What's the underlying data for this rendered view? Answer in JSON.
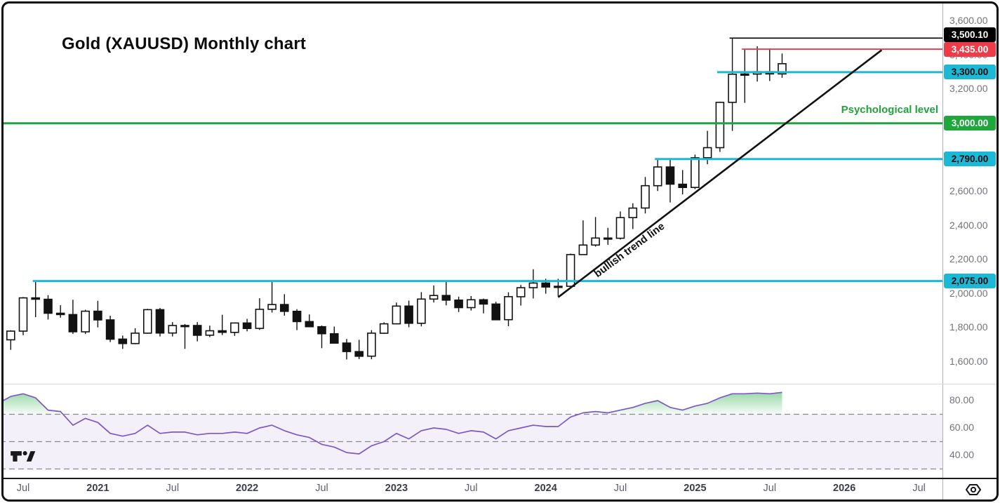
{
  "chart_data": {
    "type": "candlestick",
    "title": "Gold (XAUUSD) Monthly chart",
    "symbol": "XAUUSD",
    "timeframe": "Monthly",
    "price_axis_ticks": [
      {
        "label": "3,600.00",
        "value": 3600
      },
      {
        "label": "3,400.00",
        "value": 3400
      },
      {
        "label": "3,200.00",
        "value": 3200
      },
      {
        "label": "2,800.00",
        "value": 2800
      },
      {
        "label": "2,600.00",
        "value": 2600
      },
      {
        "label": "2,400.00",
        "value": 2400
      },
      {
        "label": "2,200.00",
        "value": 2200
      },
      {
        "label": "2,000.00",
        "value": 2000
      },
      {
        "label": "1,800.00",
        "value": 1800
      },
      {
        "label": "1,600.00",
        "value": 1600
      }
    ],
    "price_badges": [
      {
        "label": "3,500.10",
        "value": 3500.1,
        "bg": "#000000",
        "fg": "#ffffff"
      },
      {
        "label": "3,435.00",
        "value": 3435,
        "bg": "#ef3b47",
        "fg": "#ffffff"
      },
      {
        "label": "3,300.00",
        "value": 3300,
        "bg": "#1cb9d6",
        "fg": "#0c0c0c"
      },
      {
        "label": "3,000.00",
        "value": 3000,
        "bg": "#1ea73c",
        "fg": "#ffffff"
      },
      {
        "label": "2,790.00",
        "value": 2790,
        "bg": "#1cb9d6",
        "fg": "#0c0c0c"
      },
      {
        "label": "2,075.00",
        "value": 2075,
        "bg": "#1cb9d6",
        "fg": "#0c0c0c"
      }
    ],
    "levels": [
      {
        "value": 3500.1,
        "color": "#000000",
        "width": 1.7,
        "start": "2025-04"
      },
      {
        "value": 3435,
        "color": "#ef3b47",
        "width": 1.9,
        "start": "2025-05"
      },
      {
        "value": 3300,
        "color": "#1cb9d6",
        "width": 3,
        "start": "2025-03"
      },
      {
        "value": 3000,
        "color": "#1fa33c",
        "width": 3,
        "start": "full",
        "annotation": "Psychological level"
      },
      {
        "value": 2790,
        "color": "#1cb9d6",
        "width": 3,
        "start": "2024-10"
      },
      {
        "value": 2075,
        "color": "#1cb9d6",
        "width": 3,
        "start": "2020-08"
      }
    ],
    "trendline": {
      "label": "bullish trend line",
      "from": {
        "month": "2024-02",
        "price": 1980
      },
      "to": {
        "month": "2026-04",
        "price": 3430
      }
    },
    "x_axis_labels": [
      {
        "text": "Jul",
        "month": "2020-07"
      },
      {
        "text": "2021",
        "month": "2021-01"
      },
      {
        "text": "Jul",
        "month": "2021-07"
      },
      {
        "text": "2022",
        "month": "2022-01"
      },
      {
        "text": "Jul",
        "month": "2022-07"
      },
      {
        "text": "2023",
        "month": "2023-01"
      },
      {
        "text": "Jul",
        "month": "2023-07"
      },
      {
        "text": "2024",
        "month": "2024-01"
      },
      {
        "text": "Jul",
        "month": "2024-07"
      },
      {
        "text": "2025",
        "month": "2025-01"
      },
      {
        "text": "Jul",
        "month": "2025-07"
      },
      {
        "text": "2026",
        "month": "2026-01"
      },
      {
        "text": "Jul",
        "month": "2026-07"
      }
    ],
    "candles": [
      [
        "2020-05",
        1742,
        1765,
        1670,
        1730
      ],
      [
        "2020-06",
        1730,
        1786,
        1671,
        1781
      ],
      [
        "2020-07",
        1781,
        1981,
        1757,
        1976
      ],
      [
        "2020-08",
        1976,
        2075,
        1863,
        1968
      ],
      [
        "2020-09",
        1968,
        1992,
        1849,
        1886
      ],
      [
        "2020-10",
        1886,
        1933,
        1860,
        1878
      ],
      [
        "2020-11",
        1878,
        1965,
        1765,
        1777
      ],
      [
        "2020-12",
        1777,
        1906,
        1764,
        1898
      ],
      [
        "2021-01",
        1898,
        1959,
        1803,
        1847
      ],
      [
        "2021-02",
        1847,
        1871,
        1717,
        1734
      ],
      [
        "2021-03",
        1734,
        1755,
        1677,
        1708
      ],
      [
        "2021-04",
        1708,
        1798,
        1704,
        1769
      ],
      [
        "2021-05",
        1769,
        1912,
        1766,
        1907
      ],
      [
        "2021-06",
        1907,
        1917,
        1750,
        1770
      ],
      [
        "2021-07",
        1770,
        1834,
        1750,
        1814
      ],
      [
        "2021-08",
        1814,
        1823,
        1677,
        1814
      ],
      [
        "2021-09",
        1814,
        1834,
        1721,
        1757
      ],
      [
        "2021-10",
        1757,
        1813,
        1746,
        1783
      ],
      [
        "2021-11",
        1783,
        1877,
        1758,
        1774
      ],
      [
        "2021-12",
        1774,
        1831,
        1753,
        1829
      ],
      [
        "2022-01",
        1829,
        1853,
        1780,
        1797
      ],
      [
        "2022-02",
        1797,
        1974,
        1788,
        1909
      ],
      [
        "2022-03",
        1909,
        2070,
        1890,
        1937
      ],
      [
        "2022-04",
        1937,
        1998,
        1872,
        1897
      ],
      [
        "2022-05",
        1897,
        1910,
        1787,
        1837
      ],
      [
        "2022-06",
        1837,
        1879,
        1805,
        1807
      ],
      [
        "2022-07",
        1807,
        1814,
        1681,
        1766
      ],
      [
        "2022-08",
        1766,
        1808,
        1711,
        1711
      ],
      [
        "2022-09",
        1711,
        1735,
        1615,
        1661
      ],
      [
        "2022-10",
        1661,
        1730,
        1617,
        1634
      ],
      [
        "2022-11",
        1634,
        1787,
        1616,
        1769
      ],
      [
        "2022-12",
        1769,
        1833,
        1765,
        1824
      ],
      [
        "2023-01",
        1824,
        1949,
        1823,
        1928
      ],
      [
        "2023-02",
        1928,
        1960,
        1804,
        1827
      ],
      [
        "2023-03",
        1827,
        2010,
        1809,
        1969
      ],
      [
        "2023-04",
        1969,
        2049,
        1949,
        1990
      ],
      [
        "2023-05",
        1990,
        2079,
        1932,
        1963
      ],
      [
        "2023-06",
        1963,
        1983,
        1893,
        1919
      ],
      [
        "2023-07",
        1919,
        1987,
        1902,
        1965
      ],
      [
        "2023-08",
        1965,
        1972,
        1885,
        1940
      ],
      [
        "2023-09",
        1940,
        1953,
        1848,
        1848
      ],
      [
        "2023-10",
        1848,
        2009,
        1810,
        1983
      ],
      [
        "2023-11",
        1983,
        2052,
        1931,
        2036
      ],
      [
        "2023-12",
        2036,
        2144,
        1973,
        2063
      ],
      [
        "2024-01",
        2063,
        2088,
        2001,
        2040
      ],
      [
        "2024-02",
        2040,
        2088,
        1984,
        2044
      ],
      [
        "2024-03",
        2044,
        2236,
        2039,
        2230
      ],
      [
        "2024-04",
        2230,
        2431,
        2228,
        2286
      ],
      [
        "2024-05",
        2286,
        2450,
        2277,
        2327
      ],
      [
        "2024-06",
        2327,
        2387,
        2287,
        2326
      ],
      [
        "2024-07",
        2326,
        2483,
        2318,
        2447
      ],
      [
        "2024-08",
        2447,
        2531,
        2380,
        2503
      ],
      [
        "2024-09",
        2503,
        2685,
        2471,
        2634
      ],
      [
        "2024-10",
        2634,
        2790,
        2603,
        2744
      ],
      [
        "2024-11",
        2744,
        2790,
        2536,
        2643
      ],
      [
        "2024-12",
        2643,
        2726,
        2583,
        2624
      ],
      [
        "2025-01",
        2624,
        2817,
        2614,
        2798
      ],
      [
        "2025-02",
        2798,
        2956,
        2760,
        2857
      ],
      [
        "2025-03",
        2857,
        3127,
        2832,
        3123
      ],
      [
        "2025-04",
        3123,
        3500,
        2956,
        3288
      ],
      [
        "2025-05",
        3288,
        3435,
        3120,
        3289
      ],
      [
        "2025-06",
        3289,
        3452,
        3245,
        3303
      ],
      [
        "2025-07",
        3303,
        3439,
        3248,
        3290
      ],
      [
        "2025-08",
        3290,
        3410,
        3268,
        3350
      ]
    ],
    "rsi": {
      "values": [
        78,
        83,
        85,
        82,
        73,
        72,
        62,
        67,
        64,
        56,
        54,
        56,
        62,
        56,
        57,
        57,
        55,
        56,
        56,
        57,
        56,
        60,
        62,
        58,
        55,
        53,
        48,
        46,
        42,
        41,
        47,
        50,
        56,
        52,
        58,
        60,
        59,
        56,
        58,
        57,
        52,
        58,
        60,
        62,
        61,
        61,
        68,
        71,
        72,
        71,
        73,
        75,
        78,
        80,
        75,
        73,
        76,
        78,
        82,
        85,
        85,
        85.5,
        85,
        86
      ],
      "bands": {
        "upper": 70,
        "middle": 50,
        "lower": 30
      },
      "axis_ticks": [
        {
          "label": "80.00",
          "value": 80
        },
        {
          "label": "60.00",
          "value": 60
        },
        {
          "label": "40.00",
          "value": 40
        }
      ]
    },
    "colors": {
      "candle_up": "#ffffff",
      "candle_down": "#121212",
      "candle_border": "#121212",
      "level_cyan": "#1cb9d6",
      "level_red": "#ef3b47",
      "level_green": "#1fa33c",
      "level_black": "#000000",
      "trend_line": "#111111",
      "rsi_line": "#7e57c2",
      "rsi_overbought_fill": "#22ab42",
      "rsi_band_fill": "#7e57c2"
    }
  },
  "icons": {
    "bottom_left_logo": "tradingview-logo-icon",
    "time_axis_settings": "gear-icon"
  }
}
